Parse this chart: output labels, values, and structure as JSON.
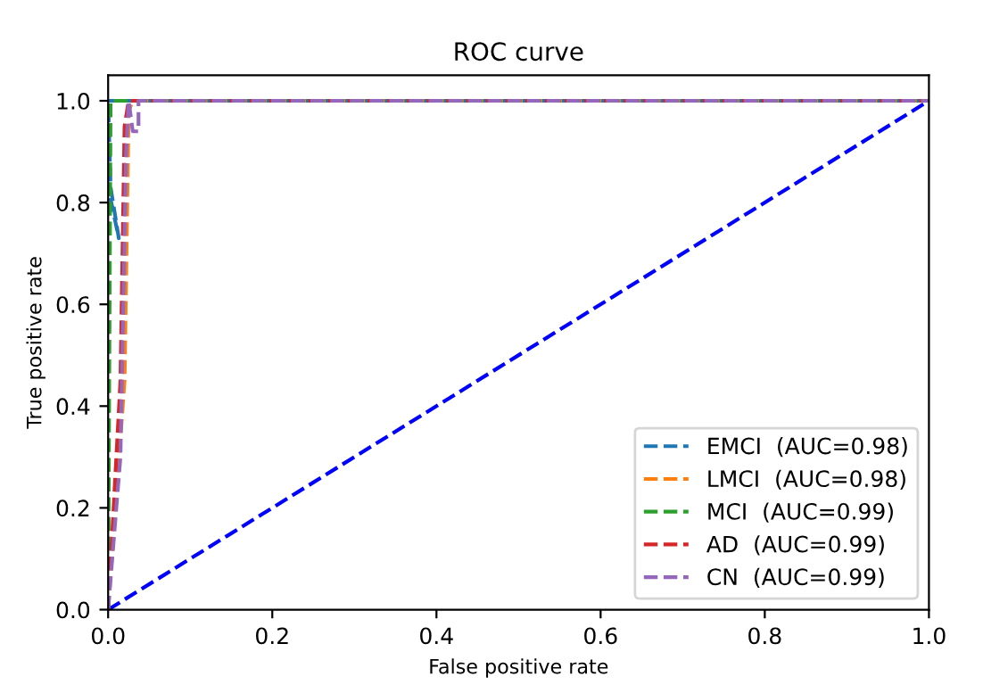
{
  "chart_data": {
    "type": "line",
    "title": "ROC curve",
    "xlabel": "False positive rate",
    "ylabel": "True positive rate",
    "xlim": [
      0,
      1
    ],
    "ylim": [
      0,
      1.05
    ],
    "xticks": [
      {
        "value": 0,
        "label": "0.0"
      },
      0.2,
      0.4,
      0.6,
      0.8,
      {
        "value": 1,
        "label": "1.0"
      }
    ],
    "yticks": [
      {
        "value": 0,
        "label": "0.0"
      },
      0.2,
      0.4,
      0.6,
      0.8,
      {
        "value": 1,
        "label": "1.0"
      }
    ],
    "line_style": "dashed",
    "legend": "lower right",
    "grid": false,
    "series": [
      {
        "name": "EMCI  (AUC=0.98)",
        "color": "#1f77b4",
        "x": [
          0,
          0,
          0.013,
          0.003,
          0,
          1
        ],
        "values": [
          0,
          0.83,
          0.73,
          0.83,
          1,
          1
        ]
      },
      {
        "name": "LMCI  (AUC=0.98)",
        "color": "#ff7f0e",
        "x": [
          0,
          0.02,
          0.025,
          0.03,
          1
        ],
        "values": [
          0,
          0.45,
          0.98,
          1,
          1
        ]
      },
      {
        "name": "MCI  (AUC=0.99)",
        "color": "#2ca02c",
        "x": [
          0,
          0.003,
          1
        ],
        "values": [
          0,
          1,
          1
        ]
      },
      {
        "name": "AD  (AUC=0.99)",
        "color": "#d62728",
        "x": [
          0,
          0.015,
          0.02,
          0.025,
          1
        ],
        "values": [
          0,
          0.45,
          0.95,
          1,
          1
        ]
      },
      {
        "name": "CN  (AUC=0.99)",
        "color": "#9467bd",
        "x": [
          0,
          0.015,
          0.022,
          0.025,
          0.03,
          0.037,
          0.037,
          1
        ],
        "values": [
          0,
          0.3,
          0.9,
          1,
          0.94,
          0.94,
          1,
          1
        ]
      },
      {
        "color": "#0000ff",
        "x": [
          0,
          1
        ],
        "values": [
          0,
          1
        ]
      }
    ]
  }
}
